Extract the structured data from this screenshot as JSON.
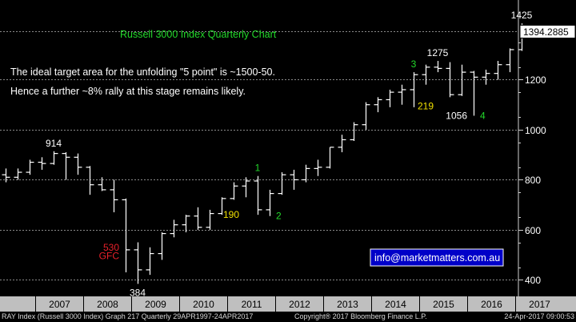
{
  "chart_data": {
    "type": "ohlc",
    "title": "Russell 3000 Index Quarterly Chart",
    "notes": [
      "The ideal target area for the unfolding \"5 point\" is ~1500-50.",
      "Hence  a further ~8% rally at this stage remains likely."
    ],
    "contact": "info@marketmatters.com.au",
    "last_price": "1394.2885",
    "y_ticks": [
      400,
      600,
      800,
      1000,
      1200
    ],
    "y_range": [
      350,
      1480
    ],
    "x_years": [
      "2007",
      "2008",
      "2009",
      "2010",
      "2011",
      "2012",
      "2013",
      "2014",
      "2015",
      "2016",
      "2017"
    ],
    "bars": [
      {
        "q": "2006Q2",
        "o": 820,
        "h": 845,
        "l": 790,
        "c": 810
      },
      {
        "q": "2006Q3",
        "o": 810,
        "h": 845,
        "l": 800,
        "c": 830
      },
      {
        "q": "2006Q4",
        "o": 830,
        "h": 880,
        "l": 820,
        "c": 870
      },
      {
        "q": "2007Q1",
        "o": 870,
        "h": 890,
        "l": 840,
        "c": 865
      },
      {
        "q": "2007Q2",
        "o": 865,
        "h": 914,
        "l": 860,
        "c": 905
      },
      {
        "q": "2007Q3",
        "o": 905,
        "h": 910,
        "l": 800,
        "c": 890
      },
      {
        "q": "2007Q4",
        "o": 890,
        "h": 905,
        "l": 820,
        "c": 850
      },
      {
        "q": "2008Q1",
        "o": 850,
        "h": 855,
        "l": 740,
        "c": 780
      },
      {
        "q": "2008Q2",
        "o": 780,
        "h": 810,
        "l": 755,
        "c": 760
      },
      {
        "q": "2008Q3",
        "o": 760,
        "h": 800,
        "l": 670,
        "c": 720
      },
      {
        "q": "2008Q4",
        "o": 720,
        "h": 725,
        "l": 430,
        "c": 520
      },
      {
        "q": "2009Q1",
        "o": 520,
        "h": 550,
        "l": 384,
        "c": 440
      },
      {
        "q": "2009Q2",
        "o": 440,
        "h": 530,
        "l": 420,
        "c": 505
      },
      {
        "q": "2009Q3",
        "o": 505,
        "h": 590,
        "l": 480,
        "c": 585
      },
      {
        "q": "2009Q4",
        "o": 585,
        "h": 640,
        "l": 570,
        "c": 620
      },
      {
        "q": "2010Q1",
        "o": 620,
        "h": 660,
        "l": 590,
        "c": 655
      },
      {
        "q": "2010Q2",
        "o": 655,
        "h": 690,
        "l": 600,
        "c": 610
      },
      {
        "q": "2010Q3",
        "o": 610,
        "h": 680,
        "l": 600,
        "c": 665
      },
      {
        "q": "2010Q4",
        "o": 665,
        "h": 730,
        "l": 660,
        "c": 725
      },
      {
        "q": "2011Q1",
        "o": 725,
        "h": 790,
        "l": 720,
        "c": 775
      },
      {
        "q": "2011Q2",
        "o": 775,
        "h": 810,
        "l": 730,
        "c": 795
      },
      {
        "q": "2011Q3",
        "o": 795,
        "h": 815,
        "l": 660,
        "c": 680
      },
      {
        "q": "2011Q4",
        "o": 680,
        "h": 760,
        "l": 655,
        "c": 745
      },
      {
        "q": "2012Q1",
        "o": 745,
        "h": 830,
        "l": 740,
        "c": 820
      },
      {
        "q": "2012Q2",
        "o": 820,
        "h": 840,
        "l": 760,
        "c": 800
      },
      {
        "q": "2012Q3",
        "o": 800,
        "h": 860,
        "l": 790,
        "c": 845
      },
      {
        "q": "2012Q4",
        "o": 845,
        "h": 880,
        "l": 815,
        "c": 850
      },
      {
        "q": "2013Q1",
        "o": 850,
        "h": 930,
        "l": 845,
        "c": 930
      },
      {
        "q": "2013Q2",
        "o": 930,
        "h": 980,
        "l": 910,
        "c": 960
      },
      {
        "q": "2013Q3",
        "o": 960,
        "h": 1030,
        "l": 955,
        "c": 1020
      },
      {
        "q": "2013Q4",
        "o": 1020,
        "h": 1110,
        "l": 1000,
        "c": 1100
      },
      {
        "q": "2014Q1",
        "o": 1100,
        "h": 1130,
        "l": 1070,
        "c": 1120
      },
      {
        "q": "2014Q2",
        "o": 1120,
        "h": 1160,
        "l": 1090,
        "c": 1150
      },
      {
        "q": "2014Q3",
        "o": 1150,
        "h": 1180,
        "l": 1100,
        "c": 1160
      },
      {
        "q": "2014Q4",
        "o": 1160,
        "h": 1230,
        "l": 1090,
        "c": 1220
      },
      {
        "q": "2015Q1",
        "o": 1220,
        "h": 1260,
        "l": 1180,
        "c": 1250
      },
      {
        "q": "2015Q2",
        "o": 1250,
        "h": 1275,
        "l": 1230,
        "c": 1245
      },
      {
        "q": "2015Q3",
        "o": 1245,
        "h": 1270,
        "l": 1130,
        "c": 1140
      },
      {
        "q": "2015Q4",
        "o": 1140,
        "h": 1260,
        "l": 1135,
        "c": 1230
      },
      {
        "q": "2016Q1",
        "o": 1230,
        "h": 1235,
        "l": 1056,
        "c": 1210
      },
      {
        "q": "2016Q2",
        "o": 1210,
        "h": 1240,
        "l": 1180,
        "c": 1225
      },
      {
        "q": "2016Q3",
        "o": 1225,
        "h": 1275,
        "l": 1200,
        "c": 1260
      },
      {
        "q": "2016Q4",
        "o": 1260,
        "h": 1325,
        "l": 1230,
        "c": 1320
      },
      {
        "q": "2017Q1",
        "o": 1320,
        "h": 1425,
        "l": 1315,
        "c": 1400
      },
      {
        "q": "2017Q2",
        "o": 1400,
        "h": 1415,
        "l": 1380,
        "c": 1394.29
      }
    ],
    "annotations": [
      {
        "text": "914",
        "x": "2007Q2",
        "y": 914,
        "color": "#ffffff",
        "pos": "above"
      },
      {
        "text": "530",
        "x": "2008Q4",
        "y": 530,
        "color": "#e8202a",
        "pos": "left"
      },
      {
        "text": "GFC",
        "x": "2008Q4",
        "y": 495,
        "color": "#e8202a",
        "pos": "left"
      },
      {
        "text": "384",
        "x": "2009Q1",
        "y": 384,
        "color": "#ffffff",
        "pos": "below"
      },
      {
        "text": "1",
        "x": "2011Q3",
        "y": 815,
        "color": "#22d82a",
        "pos": "above"
      },
      {
        "text": "190",
        "x": "2011Q2",
        "y": 660,
        "color": "#f0e000",
        "pos": "left"
      },
      {
        "text": "2",
        "x": "2011Q4",
        "y": 655,
        "color": "#22d82a",
        "pos": "right"
      },
      {
        "text": "3",
        "x": "2014Q4",
        "y": 1230,
        "color": "#22d82a",
        "pos": "above"
      },
      {
        "text": "1275",
        "x": "2015Q2",
        "y": 1275,
        "color": "#ffffff",
        "pos": "above"
      },
      {
        "text": "219",
        "x": "2015Q1",
        "y": 1130,
        "color": "#f0e000",
        "pos": "below"
      },
      {
        "text": "1056",
        "x": "2016Q1",
        "y": 1056,
        "color": "#ffffff",
        "pos": "left"
      },
      {
        "text": "4",
        "x": "2016Q1",
        "y": 1056,
        "color": "#22d82a",
        "pos": "right"
      },
      {
        "text": "1425",
        "x": "2017Q1",
        "y": 1425,
        "color": "#ffffff",
        "pos": "above"
      }
    ],
    "grid": true,
    "colors": {
      "background": "#000000",
      "bars": "#ffffff",
      "grid": "#8a8a8a",
      "title": "#22d82a",
      "axis_band": "#bfbfbf"
    }
  },
  "footer": {
    "left": "RAY Index (Russell 3000 Index) Graph 217  Quarterly 29APR1997-24APR2017",
    "middle": "Copyright® 2017 Bloomberg Finance L.P.",
    "right": "24-Apr-2017 09:00:53"
  }
}
